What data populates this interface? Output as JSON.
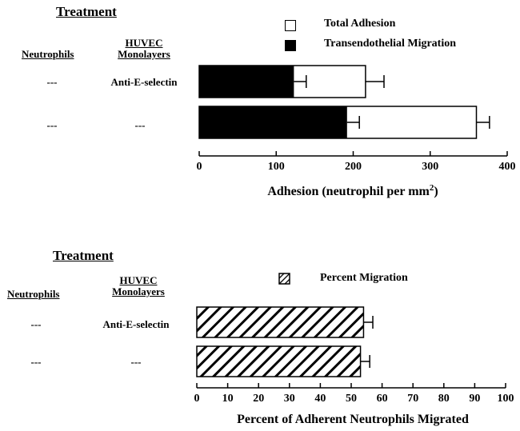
{
  "chart_data": [
    {
      "type": "bar",
      "orientation": "horizontal",
      "treatment_heading": "Treatment",
      "row_headers": {
        "neutrophils": "Neutrophils",
        "huvec_line1": "HUVEC",
        "huvec_line2": "Monolayers"
      },
      "rows": [
        {
          "neutrophils": "---",
          "huvec": "Anti-E-selectin"
        },
        {
          "neutrophils": "---",
          "huvec": "---"
        }
      ],
      "series": [
        {
          "name": "Total Adhesion",
          "values": [
            216,
            360
          ],
          "errors": [
            24,
            17
          ],
          "fill": "white"
        },
        {
          "name": "Transendothelial Migration",
          "values": [
            123,
            192
          ],
          "errors": [
            16,
            16
          ],
          "fill": "black"
        }
      ],
      "xlabel_main": "Adhesion (neutrophil per mm",
      "xlabel_sup": "2",
      "xlabel_end": ")",
      "xlim": [
        0,
        400
      ],
      "xticks": [
        0,
        100,
        200,
        300,
        400
      ],
      "legend_position": "top"
    },
    {
      "type": "bar",
      "orientation": "horizontal",
      "treatment_heading": "Treatment",
      "row_headers": {
        "neutrophils": "Neutrophils",
        "huvec_line1": "HUVEC",
        "huvec_line2": "Monolayers"
      },
      "rows": [
        {
          "neutrophils": "---",
          "huvec": "Anti-E-selectin"
        },
        {
          "neutrophils": "---",
          "huvec": "---"
        }
      ],
      "series": [
        {
          "name": "Percent Migration",
          "values": [
            54,
            53
          ],
          "errors": [
            3,
            3
          ],
          "fill": "hatched"
        }
      ],
      "xlabel": "Percent of Adherent Neutrophils Migrated",
      "xlim": [
        0,
        100
      ],
      "xticks": [
        0,
        10,
        20,
        30,
        40,
        50,
        60,
        70,
        80,
        90,
        100
      ],
      "legend_position": "top"
    }
  ]
}
